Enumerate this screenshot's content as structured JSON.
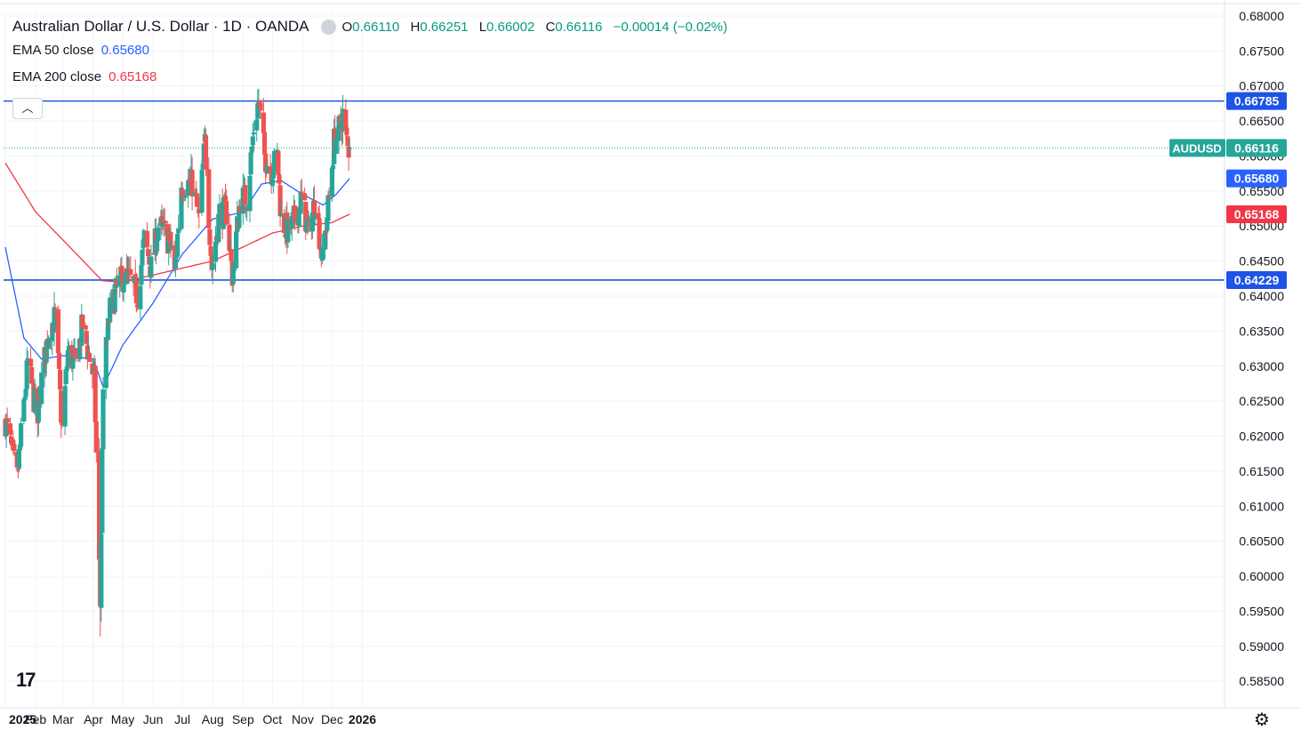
{
  "header": {
    "title": "Australian Dollar / U.S. Dollar · 1D · OANDA",
    "open_label": "O",
    "open": "0.66110",
    "high_label": "H",
    "high": "0.66251",
    "low_label": "L",
    "low": "0.66002",
    "close_label": "C",
    "close": "0.66116",
    "change": "−0.00014 (−0.02%)",
    "ema50_label": "EMA 50 close",
    "ema50_value": "0.65680",
    "ema200_label": "EMA 200 close",
    "ema200_value": "0.65168",
    "collapse_icon": "chevron-up-icon"
  },
  "colors": {
    "up": "#26a69a",
    "down": "#ef5350",
    "ema50": "#2962ff",
    "ema200": "#f23645",
    "hline": "#1e53e5",
    "symbol_tag": "#26a69a",
    "text": "#131722"
  },
  "chart_data": {
    "type": "candlestick",
    "symbol": "AUDUSD",
    "x_ticks": [
      "2025",
      "Feb",
      "Mar",
      "Apr",
      "May",
      "Jun",
      "Jul",
      "Aug",
      "Sep",
      "Oct",
      "Nov",
      "Dec",
      "2026"
    ],
    "y_ticks": [
      "0.68000",
      "0.67500",
      "0.67000",
      "0.66500",
      "0.66000",
      "0.65500",
      "0.65000",
      "0.64500",
      "0.64000",
      "0.63500",
      "0.63000",
      "0.62500",
      "0.62000",
      "0.61500",
      "0.61000",
      "0.60500",
      "0.60000",
      "0.59500",
      "0.59000",
      "0.58500"
    ],
    "ylim": [
      0.5835,
      0.6805
    ],
    "horizontal_lines": [
      {
        "value": 0.66785,
        "label": "0.66785"
      },
      {
        "value": 0.64229,
        "label": "0.64229"
      }
    ],
    "price_tags": [
      {
        "name": "AUDUSD",
        "value": 0.66116,
        "label": "0.66116"
      },
      {
        "name": "EMA 50",
        "value": 0.6568,
        "label": "0.65680"
      },
      {
        "name": "EMA 200",
        "value": 0.65168,
        "label": "0.65168"
      }
    ],
    "close_anchors": [
      [
        "2025-01-01",
        0.6222
      ],
      [
        "2025-01-13",
        0.614
      ],
      [
        "2025-01-24",
        0.6305
      ],
      [
        "2025-02-03",
        0.622
      ],
      [
        "2025-02-07",
        0.628
      ],
      [
        "2025-02-14",
        0.635
      ],
      [
        "2025-02-21",
        0.637
      ],
      [
        "2025-02-28",
        0.621
      ],
      [
        "2025-03-06",
        0.632
      ],
      [
        "2025-03-14",
        0.63
      ],
      [
        "2025-03-21",
        0.636
      ],
      [
        "2025-03-28",
        0.631
      ],
      [
        "2025-04-02",
        0.628
      ],
      [
        "2025-04-08",
        0.596
      ],
      [
        "2025-04-11",
        0.628
      ],
      [
        "2025-04-18",
        0.638
      ],
      [
        "2025-04-25",
        0.641
      ],
      [
        "2025-05-02",
        0.643
      ],
      [
        "2025-05-09",
        0.642
      ],
      [
        "2025-05-16",
        0.64
      ],
      [
        "2025-05-23",
        0.648
      ],
      [
        "2025-05-30",
        0.644
      ],
      [
        "2025-06-06",
        0.65
      ],
      [
        "2025-06-13",
        0.649
      ],
      [
        "2025-06-20",
        0.647
      ],
      [
        "2025-06-23",
        0.643
      ],
      [
        "2025-06-30",
        0.656
      ],
      [
        "2025-07-04",
        0.656
      ],
      [
        "2025-07-11",
        0.656
      ],
      [
        "2025-07-18",
        0.651
      ],
      [
        "2025-07-24",
        0.662
      ],
      [
        "2025-07-31",
        0.644
      ],
      [
        "2025-08-08",
        0.652
      ],
      [
        "2025-08-15",
        0.652
      ],
      [
        "2025-08-21",
        0.643
      ],
      [
        "2025-08-29",
        0.654
      ],
      [
        "2025-09-05",
        0.654
      ],
      [
        "2025-09-12",
        0.664
      ],
      [
        "2025-09-17",
        0.668
      ],
      [
        "2025-09-23",
        0.66
      ],
      [
        "2025-09-30",
        0.658
      ],
      [
        "2025-10-06",
        0.66
      ],
      [
        "2025-10-10",
        0.651
      ],
      [
        "2025-10-17",
        0.649
      ],
      [
        "2025-10-24",
        0.651
      ],
      [
        "2025-10-31",
        0.654
      ],
      [
        "2025-11-07",
        0.649
      ],
      [
        "2025-11-14",
        0.654
      ],
      [
        "2025-11-21",
        0.645
      ],
      [
        "2025-11-28",
        0.654
      ],
      [
        "2025-12-03",
        0.662
      ],
      [
        "2025-12-09",
        0.664
      ],
      [
        "2025-12-12",
        0.666
      ],
      [
        "2025-12-17",
        0.661
      ],
      [
        "2025-12-19",
        0.6612
      ]
    ],
    "ema50_anchors": [
      [
        "2025-01-01",
        0.647
      ],
      [
        "2025-01-20",
        0.634
      ],
      [
        "2025-02-07",
        0.631
      ],
      [
        "2025-03-01",
        0.6315
      ],
      [
        "2025-04-01",
        0.631
      ],
      [
        "2025-04-11",
        0.627
      ],
      [
        "2025-05-01",
        0.633
      ],
      [
        "2025-06-01",
        0.639
      ],
      [
        "2025-07-01",
        0.646
      ],
      [
        "2025-08-01",
        0.651
      ],
      [
        "2025-09-01",
        0.652
      ],
      [
        "2025-09-20",
        0.656
      ],
      [
        "2025-10-10",
        0.6565
      ],
      [
        "2025-11-01",
        0.6545
      ],
      [
        "2025-11-22",
        0.653
      ],
      [
        "2025-12-05",
        0.6545
      ],
      [
        "2025-12-19",
        0.6568
      ]
    ],
    "ema200_anchors": [
      [
        "2025-01-01",
        0.659
      ],
      [
        "2025-02-01",
        0.652
      ],
      [
        "2025-03-01",
        0.648
      ],
      [
        "2025-04-01",
        0.6435
      ],
      [
        "2025-04-10",
        0.6422
      ],
      [
        "2025-05-01",
        0.642
      ],
      [
        "2025-06-01",
        0.643
      ],
      [
        "2025-07-01",
        0.644
      ],
      [
        "2025-08-01",
        0.645
      ],
      [
        "2025-09-01",
        0.647
      ],
      [
        "2025-10-01",
        0.649
      ],
      [
        "2025-11-01",
        0.65
      ],
      [
        "2025-12-01",
        0.6505
      ],
      [
        "2025-12-19",
        0.6517
      ]
    ]
  }
}
